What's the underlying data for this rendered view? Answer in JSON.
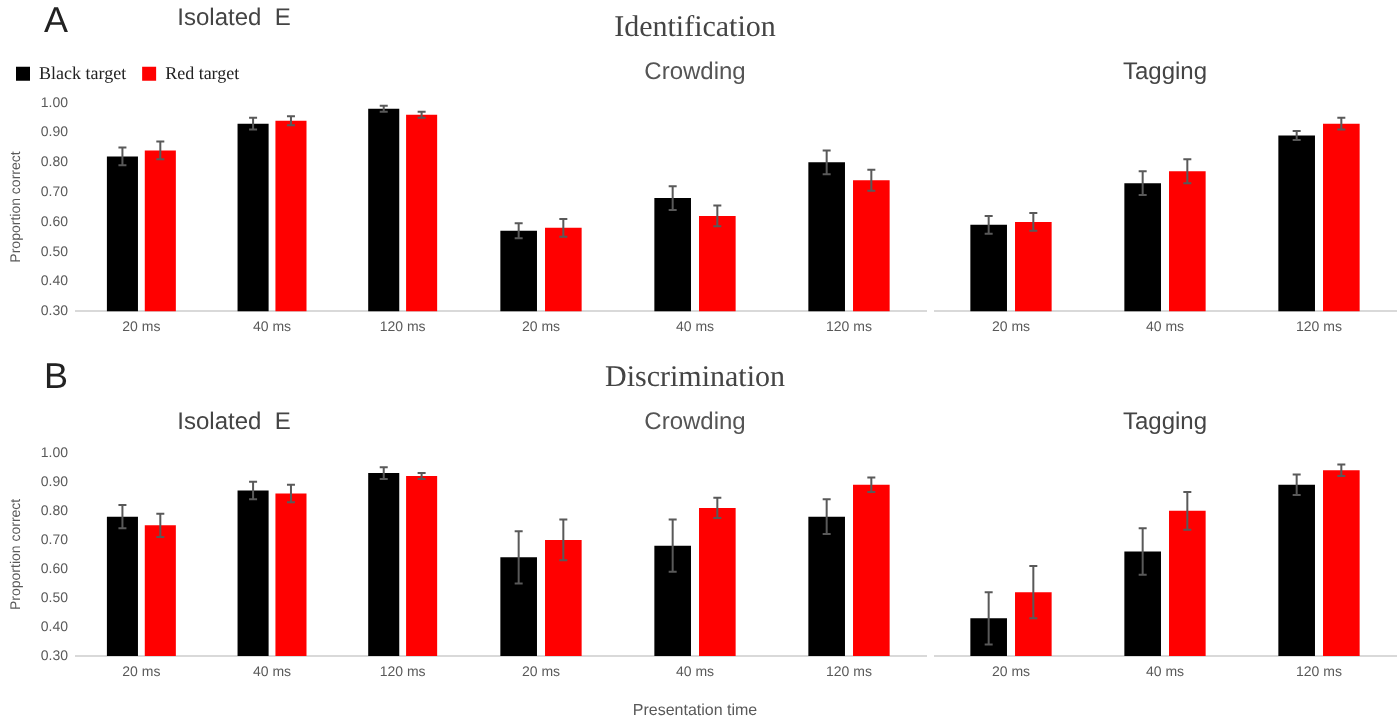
{
  "chart_data": [
    {
      "type": "bar",
      "title": "Isolated  E",
      "ylabel": "Proportion correct",
      "annotations": [
        "A"
      ],
      "categories": [
        "20 ms",
        "40 ms",
        "120 ms"
      ],
      "legend": "top left",
      "ylim": [
        0.3,
        1.0
      ],
      "yticks": [
        {
          "value": 0.3,
          "label": "0.30"
        },
        {
          "value": 0.4,
          "label": "0.40"
        },
        {
          "value": 0.5,
          "label": "0.50"
        },
        {
          "value": 0.6,
          "label": "0.60"
        },
        {
          "value": 0.7,
          "label": "0.70"
        },
        {
          "value": 0.8,
          "label": "0.80"
        },
        {
          "value": 0.9,
          "label": "0.90"
        },
        {
          "value": 1.0,
          "label": "1.00"
        }
      ],
      "grid": false,
      "series": [
        {
          "name": "Black target",
          "color": "#000000",
          "values": [
            0.82,
            0.93,
            0.98
          ],
          "errors": [
            0.03,
            0.02,
            0.01
          ]
        },
        {
          "name": "Red target",
          "color": "#ff0000",
          "values": [
            0.84,
            0.94,
            0.96
          ],
          "errors": [
            0.03,
            0.015,
            0.01
          ]
        }
      ]
    },
    {
      "type": "bar",
      "title": "Identification",
      "subtitle": "Crowding",
      "categories": [
        "20 ms",
        "40 ms",
        "120 ms"
      ],
      "ylim": [
        0.3,
        1.0
      ],
      "tick_labels": "x",
      "grid": false,
      "series": [
        {
          "color": "#000000",
          "values": [
            0.57,
            0.68,
            0.8
          ],
          "errors": [
            0.025,
            0.04,
            0.04
          ]
        },
        {
          "color": "#ff0000",
          "values": [
            0.58,
            0.62,
            0.74
          ],
          "errors": [
            0.03,
            0.035,
            0.035
          ]
        }
      ]
    },
    {
      "type": "bar",
      "title": "Tagging",
      "categories": [
        "20 ms",
        "40 ms",
        "120 ms"
      ],
      "ylim": [
        0.3,
        1.0
      ],
      "tick_labels": "x",
      "grid": false,
      "series": [
        {
          "color": "#000000",
          "values": [
            0.59,
            0.73,
            0.89
          ],
          "errors": [
            0.03,
            0.04,
            0.015
          ]
        },
        {
          "color": "#ff0000",
          "values": [
            0.6,
            0.77,
            0.93
          ],
          "errors": [
            0.03,
            0.04,
            0.02
          ]
        }
      ]
    },
    {
      "type": "bar",
      "title": "Isolated  E",
      "ylabel": "Proportion correct",
      "annotations": [
        "B"
      ],
      "categories": [
        "20 ms",
        "40 ms",
        "120 ms"
      ],
      "ylim": [
        0.3,
        1.0
      ],
      "yticks": [
        {
          "value": 0.3,
          "label": "0.30"
        },
        {
          "value": 0.4,
          "label": "0.40"
        },
        {
          "value": 0.5,
          "label": "0.50"
        },
        {
          "value": 0.6,
          "label": "0.60"
        },
        {
          "value": 0.7,
          "label": "0.70"
        },
        {
          "value": 0.8,
          "label": "0.80"
        },
        {
          "value": 0.9,
          "label": "0.90"
        },
        {
          "value": 1.0,
          "label": "1.00"
        }
      ],
      "grid": false,
      "series": [
        {
          "color": "#000000",
          "values": [
            0.78,
            0.87,
            0.93
          ],
          "errors": [
            0.04,
            0.03,
            0.02
          ]
        },
        {
          "color": "#ff0000",
          "values": [
            0.75,
            0.86,
            0.92
          ],
          "errors": [
            0.04,
            0.03,
            0.01
          ]
        }
      ]
    },
    {
      "type": "bar",
      "title": "Discrimination",
      "subtitle": "Crowding",
      "xlabel": "Presentation time",
      "categories": [
        "20 ms",
        "40 ms",
        "120 ms"
      ],
      "ylim": [
        0.3,
        1.0
      ],
      "tick_labels": "x",
      "grid": false,
      "series": [
        {
          "color": "#000000",
          "values": [
            0.64,
            0.68,
            0.78
          ],
          "errors": [
            0.09,
            0.09,
            0.06
          ]
        },
        {
          "color": "#ff0000",
          "values": [
            0.7,
            0.81,
            0.89
          ],
          "errors": [
            0.07,
            0.035,
            0.025
          ]
        }
      ]
    },
    {
      "type": "bar",
      "title": "Tagging",
      "categories": [
        "20 ms",
        "40 ms",
        "120 ms"
      ],
      "ylim": [
        0.3,
        1.0
      ],
      "tick_labels": "x",
      "grid": false,
      "series": [
        {
          "color": "#000000",
          "values": [
            0.43,
            0.66,
            0.89
          ],
          "errors": [
            0.09,
            0.08,
            0.035
          ]
        },
        {
          "color": "#ff0000",
          "values": [
            0.52,
            0.8,
            0.94
          ],
          "errors": [
            0.09,
            0.065,
            0.02
          ]
        }
      ]
    }
  ]
}
